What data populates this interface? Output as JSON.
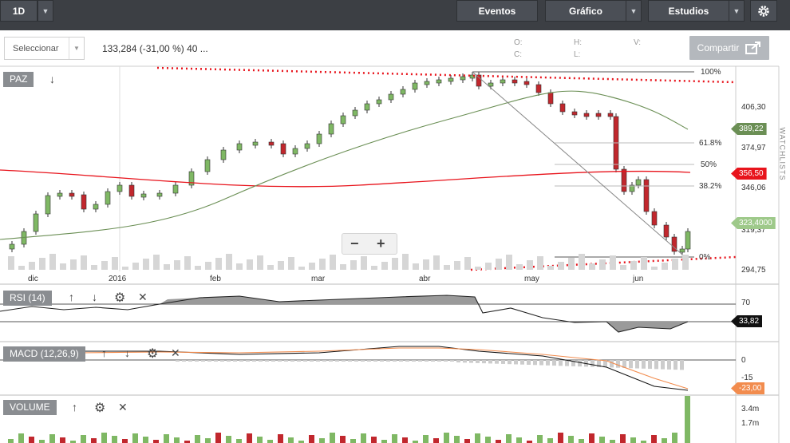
{
  "toolbar": {
    "interval": "1D",
    "events": "Eventos",
    "chart": "Gráfico",
    "studies": "Estudios",
    "settings_icon": "gear-icon"
  },
  "header": {
    "select_label": "Seleccionar",
    "quote": "133,284 (-31,00 %) 40 ...",
    "ohlc": {
      "o": "O:",
      "h": "H:",
      "v": "V:",
      "c": "C:",
      "l": "L:"
    },
    "share": "Compartir",
    "share_icon": "share-icon"
  },
  "price_panel": {
    "label": "PAZ",
    "axis": [
      "406,30",
      "374,97",
      "346,06",
      "319,37",
      "294,75"
    ],
    "fib": [
      "100%",
      "61.8%",
      "50%",
      "38.2%",
      "0%"
    ],
    "tags": [
      {
        "text": "389,22",
        "color": "#6b8f55"
      },
      {
        "text": "356,50",
        "color": "#e8141c"
      },
      {
        "text": "323,4000",
        "color": "#9ec98a"
      }
    ]
  },
  "time_axis": [
    "dic",
    "2016",
    "feb",
    "mar",
    "abr",
    "may",
    "jun"
  ],
  "rsi_panel": {
    "label": "RSI (14)",
    "axis": [
      "70"
    ],
    "tag": "33,82",
    "tag_color": "#111111"
  },
  "macd_panel": {
    "label": "MACD (12,26,9)",
    "axis": [
      "0",
      "-15"
    ],
    "tag": "-23,00",
    "tag_color": "#f28c4e"
  },
  "volume_panel": {
    "label": "VOLUME",
    "axis": [
      "3.4m",
      "1.7m"
    ]
  },
  "zoom": {
    "minus": "−",
    "plus": "+"
  },
  "watchlists": "WATCHLISTS"
}
